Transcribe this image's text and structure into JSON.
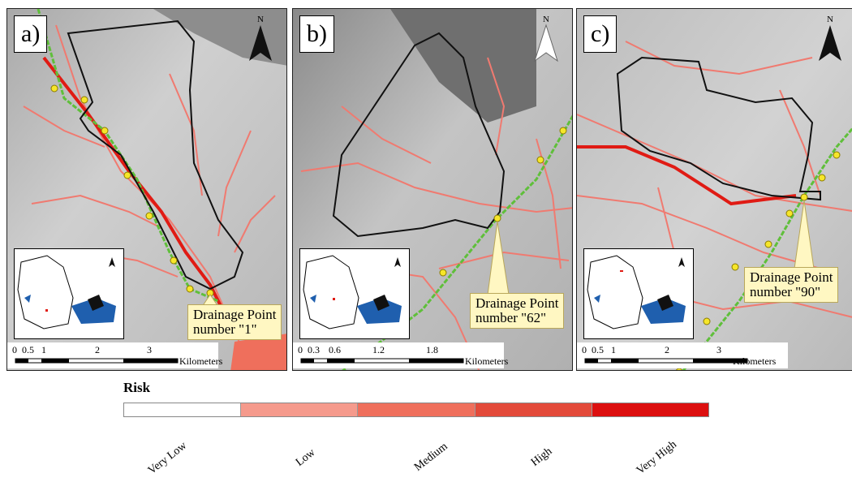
{
  "panels": [
    {
      "label": "a)",
      "north": "N",
      "scale_ticks": [
        "0",
        "0.5",
        "1",
        "2",
        "3"
      ],
      "scale_unit": "Kilometers",
      "callout": "Drainage Point\nnumber \"1\""
    },
    {
      "label": "b)",
      "north": "N",
      "scale_ticks": [
        "0",
        "0.3",
        "0.6",
        "1.2",
        "1.8"
      ],
      "scale_unit": "Kilometers",
      "callout": "Drainage Point\nnumber \"62\""
    },
    {
      "label": "c)",
      "north": "N",
      "scale_ticks": [
        "0",
        "0.5",
        "1",
        "2",
        "3"
      ],
      "scale_unit": "Kilometers",
      "callout": "Drainage Point\nnumber \"90\""
    }
  ],
  "legend": {
    "title": "Risk",
    "classes": [
      {
        "label": "Very Low",
        "color": "#ffffff"
      },
      {
        "label": "Low",
        "color": "#f59a8c"
      },
      {
        "label": "Medium",
        "color": "#ef6f5c"
      },
      {
        "label": "High",
        "color": "#e34a3a"
      },
      {
        "label": "Very High",
        "color": "#dc0f0f"
      }
    ]
  },
  "colors": {
    "stream": "#f07a70",
    "stream_strong": "#e01b14",
    "road": "#5fbf3a",
    "point": "#f6e62a",
    "basin": "#111111",
    "inset_water": "#1f5fae"
  }
}
